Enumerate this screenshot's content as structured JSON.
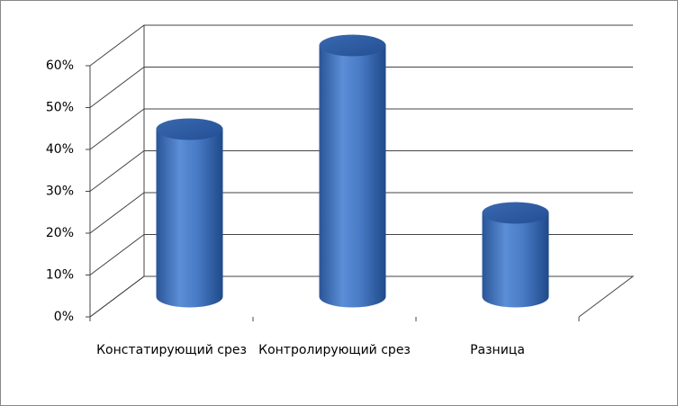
{
  "chart_data": {
    "type": "bar3d",
    "categories": [
      "Констатирующий срез",
      "Контролирующий срез",
      "Разница"
    ],
    "values": [
      40,
      60,
      20
    ],
    "color": "#4a7cc7",
    "ylim": [
      0,
      60
    ],
    "yticks": [
      {
        "value": 0,
        "label": "0%"
      },
      {
        "value": 10,
        "label": "10%"
      },
      {
        "value": 20,
        "label": "20%"
      },
      {
        "value": 30,
        "label": "30%"
      },
      {
        "value": 40,
        "label": "40%"
      },
      {
        "value": 50,
        "label": "50%"
      },
      {
        "value": 60,
        "label": "60%"
      }
    ],
    "grid": true
  }
}
